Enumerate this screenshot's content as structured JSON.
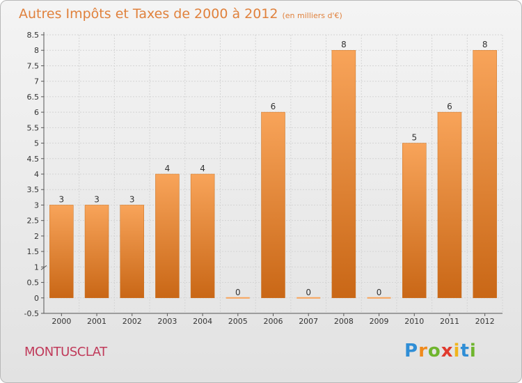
{
  "header": {
    "title": "Autres Impôts et Taxes de 2000 à 2012",
    "subtitle": "(en milliers d'€)"
  },
  "footer": {
    "commune": "MONTUSCLAT",
    "logo_text": "Proxiti"
  },
  "colors": {
    "bar_top": "#f8a45a",
    "bar_bottom": "#c96716",
    "title": "#e0813c",
    "commune": "#c03a5a"
  },
  "chart_data": {
    "type": "bar",
    "title": "Autres Impôts et Taxes de 2000 à 2012",
    "subtitle": "(en milliers d'€)",
    "categories": [
      "2000",
      "2001",
      "2002",
      "2003",
      "2004",
      "2005",
      "2006",
      "2007",
      "2008",
      "2009",
      "2010",
      "2011",
      "2012"
    ],
    "values": [
      3,
      3,
      3,
      4,
      4,
      0,
      6,
      0,
      8,
      0,
      5,
      6,
      8
    ],
    "ylim": [
      -0.5,
      8.5
    ],
    "yticks": [
      "-0.5",
      "0",
      "0.5",
      "1",
      "1.5",
      "2",
      "2.5",
      "3",
      "3.5",
      "4",
      "4.5",
      "5",
      "5.5",
      "6",
      "6.5",
      "7",
      "7.5",
      "8",
      "8.5"
    ],
    "grid": true,
    "legend": "none"
  }
}
